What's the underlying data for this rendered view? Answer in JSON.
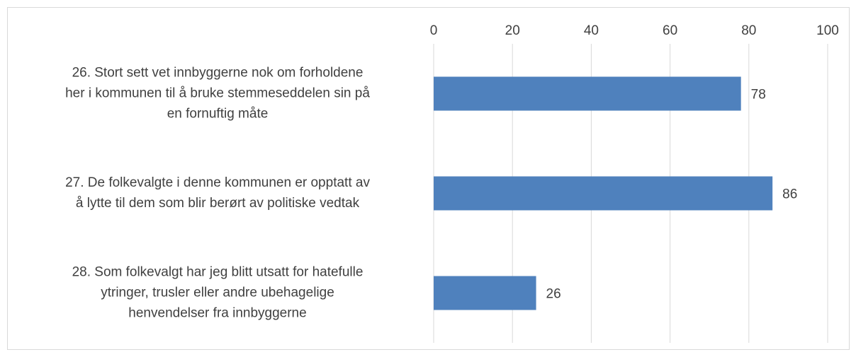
{
  "chart_data": {
    "type": "bar",
    "orientation": "horizontal",
    "categories": [
      [
        "26. Stort sett vet innbyggerne nok om forholdene",
        "her i kommunen til å bruke stemmeseddelen sin på",
        "en fornuftig måte"
      ],
      [
        "27. De folkevalgte i denne kommunen er opptatt av",
        "å lytte til dem som blir berørt av politiske vedtak"
      ],
      [
        "28. Som folkevalgt har jeg blitt utsatt for hatefulle",
        "ytringer, trusler eller andre ubehagelige",
        "henvendelser fra innbyggerne"
      ]
    ],
    "values": [
      78,
      86,
      26
    ],
    "color": "#4f81bd",
    "xlim": [
      0,
      100
    ],
    "xticks": [
      0,
      20,
      40,
      60,
      80,
      100
    ],
    "grid": true
  }
}
